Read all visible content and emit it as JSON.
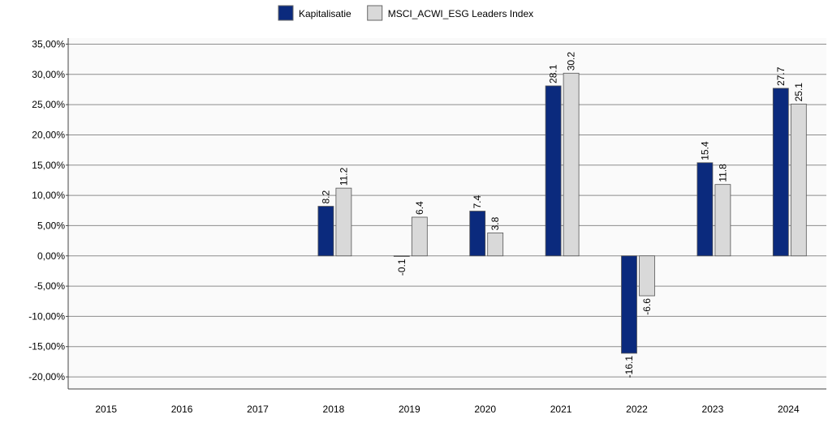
{
  "chart_data": {
    "type": "bar",
    "categories": [
      "2015",
      "2016",
      "2017",
      "2018",
      "2019",
      "2020",
      "2021",
      "2022",
      "2023",
      "2024"
    ],
    "series": [
      {
        "name": "Kapitalisatie",
        "color": "#0b2a7d",
        "values": [
          null,
          null,
          null,
          8.2,
          -0.1,
          7.4,
          28.1,
          -16.1,
          15.4,
          27.7
        ]
      },
      {
        "name": "MSCI_ACWI_ESG Leaders Index",
        "color": "#d9d9d9",
        "values": [
          null,
          null,
          null,
          11.2,
          6.4,
          3.8,
          30.2,
          -6.6,
          11.8,
          25.1
        ]
      }
    ],
    "ylim": [
      -22,
      36
    ],
    "yticks": [
      {
        "value": -20,
        "label": "-20,00%"
      },
      {
        "value": -15,
        "label": "-15,00%"
      },
      {
        "value": -10,
        "label": "-10,00%"
      },
      {
        "value": -5,
        "label": "-5,00%"
      },
      {
        "value": 0,
        "label": "0,00%"
      },
      {
        "value": 5,
        "label": "5,00%"
      },
      {
        "value": 10,
        "label": "10,00%"
      },
      {
        "value": 15,
        "label": "15,00%"
      },
      {
        "value": 20,
        "label": "20,00%"
      },
      {
        "value": 25,
        "label": "25,00%"
      },
      {
        "value": 30,
        "label": "30,00%"
      },
      {
        "value": 35,
        "label": "35,00%"
      }
    ],
    "grid": true,
    "legend": "top"
  }
}
